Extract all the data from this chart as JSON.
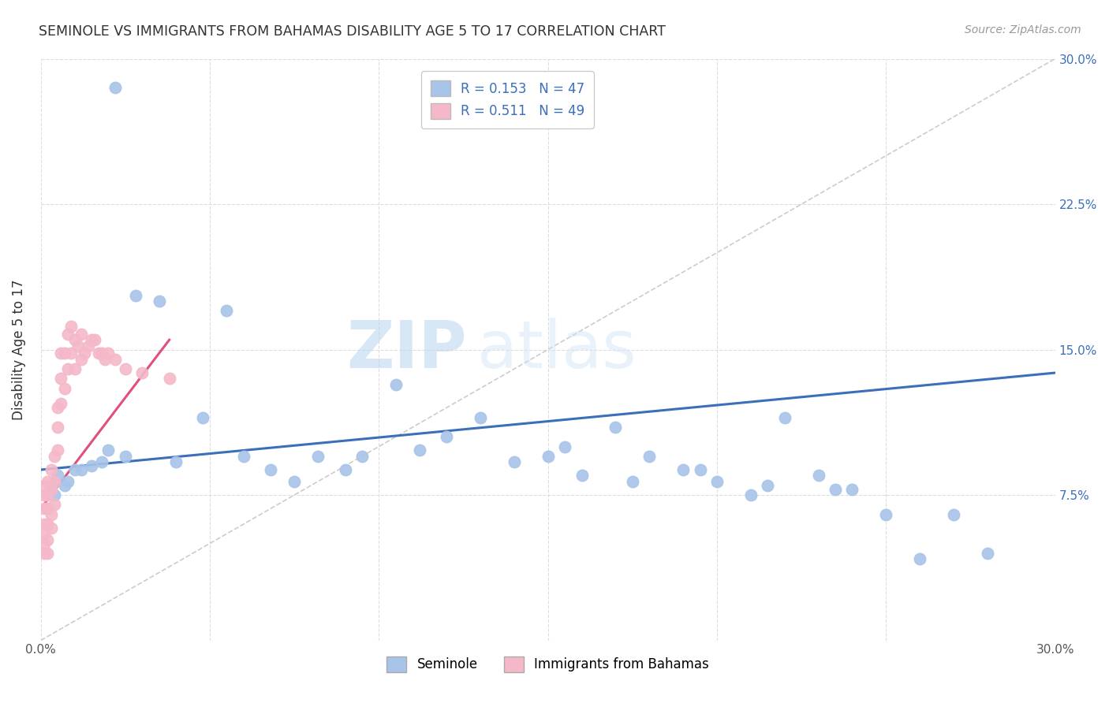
{
  "title": "SEMINOLE VS IMMIGRANTS FROM BAHAMAS DISABILITY AGE 5 TO 17 CORRELATION CHART",
  "source": "Source: ZipAtlas.com",
  "ylabel": "Disability Age 5 to 17",
  "xlim": [
    0.0,
    0.3
  ],
  "ylim": [
    0.0,
    0.3
  ],
  "xticks": [
    0.0,
    0.05,
    0.1,
    0.15,
    0.2,
    0.25,
    0.3
  ],
  "xticklabels": [
    "0.0%",
    "",
    "",
    "",
    "",
    "",
    "30.0%"
  ],
  "yticks": [
    0.0,
    0.075,
    0.15,
    0.225,
    0.3
  ],
  "yticklabels_right": [
    "",
    "7.5%",
    "15.0%",
    "22.5%",
    "30.0%"
  ],
  "seminole_R": 0.153,
  "seminole_N": 47,
  "bahamas_R": 0.511,
  "bahamas_N": 49,
  "seminole_color": "#a8c4e8",
  "seminole_line_color": "#3b6fba",
  "bahamas_color": "#f4b8c8",
  "bahamas_line_color": "#e0507a",
  "diagonal_color": "#cccccc",
  "watermark_zip": "ZIP",
  "watermark_atlas": "atlas",
  "seminole_x": [
    0.022,
    0.005,
    0.008,
    0.003,
    0.012,
    0.018,
    0.01,
    0.007,
    0.004,
    0.015,
    0.02,
    0.025,
    0.028,
    0.035,
    0.04,
    0.048,
    0.055,
    0.06,
    0.068,
    0.075,
    0.082,
    0.09,
    0.095,
    0.105,
    0.112,
    0.12,
    0.13,
    0.14,
    0.15,
    0.16,
    0.17,
    0.18,
    0.19,
    0.2,
    0.21,
    0.22,
    0.23,
    0.24,
    0.25,
    0.26,
    0.27,
    0.28,
    0.155,
    0.175,
    0.195,
    0.215,
    0.235
  ],
  "seminole_y": [
    0.285,
    0.085,
    0.082,
    0.08,
    0.088,
    0.092,
    0.088,
    0.08,
    0.075,
    0.09,
    0.098,
    0.095,
    0.178,
    0.175,
    0.092,
    0.115,
    0.17,
    0.095,
    0.088,
    0.082,
    0.095,
    0.088,
    0.095,
    0.132,
    0.098,
    0.105,
    0.115,
    0.092,
    0.095,
    0.085,
    0.11,
    0.095,
    0.088,
    0.082,
    0.075,
    0.115,
    0.085,
    0.078,
    0.065,
    0.042,
    0.065,
    0.045,
    0.1,
    0.082,
    0.088,
    0.08,
    0.078
  ],
  "bahamas_x": [
    0.001,
    0.001,
    0.001,
    0.001,
    0.001,
    0.001,
    0.001,
    0.002,
    0.002,
    0.002,
    0.002,
    0.002,
    0.002,
    0.003,
    0.003,
    0.003,
    0.003,
    0.004,
    0.004,
    0.004,
    0.005,
    0.005,
    0.005,
    0.006,
    0.006,
    0.006,
    0.007,
    0.007,
    0.008,
    0.008,
    0.009,
    0.009,
    0.01,
    0.01,
    0.011,
    0.012,
    0.012,
    0.013,
    0.014,
    0.015,
    0.016,
    0.017,
    0.018,
    0.019,
    0.02,
    0.022,
    0.025,
    0.03,
    0.038
  ],
  "bahamas_y": [
    0.08,
    0.075,
    0.068,
    0.06,
    0.055,
    0.05,
    0.045,
    0.082,
    0.075,
    0.068,
    0.06,
    0.052,
    0.045,
    0.088,
    0.078,
    0.065,
    0.058,
    0.095,
    0.082,
    0.07,
    0.12,
    0.11,
    0.098,
    0.148,
    0.135,
    0.122,
    0.148,
    0.13,
    0.158,
    0.14,
    0.162,
    0.148,
    0.155,
    0.14,
    0.152,
    0.158,
    0.145,
    0.148,
    0.152,
    0.155,
    0.155,
    0.148,
    0.148,
    0.145,
    0.148,
    0.145,
    0.14,
    0.138,
    0.135
  ]
}
